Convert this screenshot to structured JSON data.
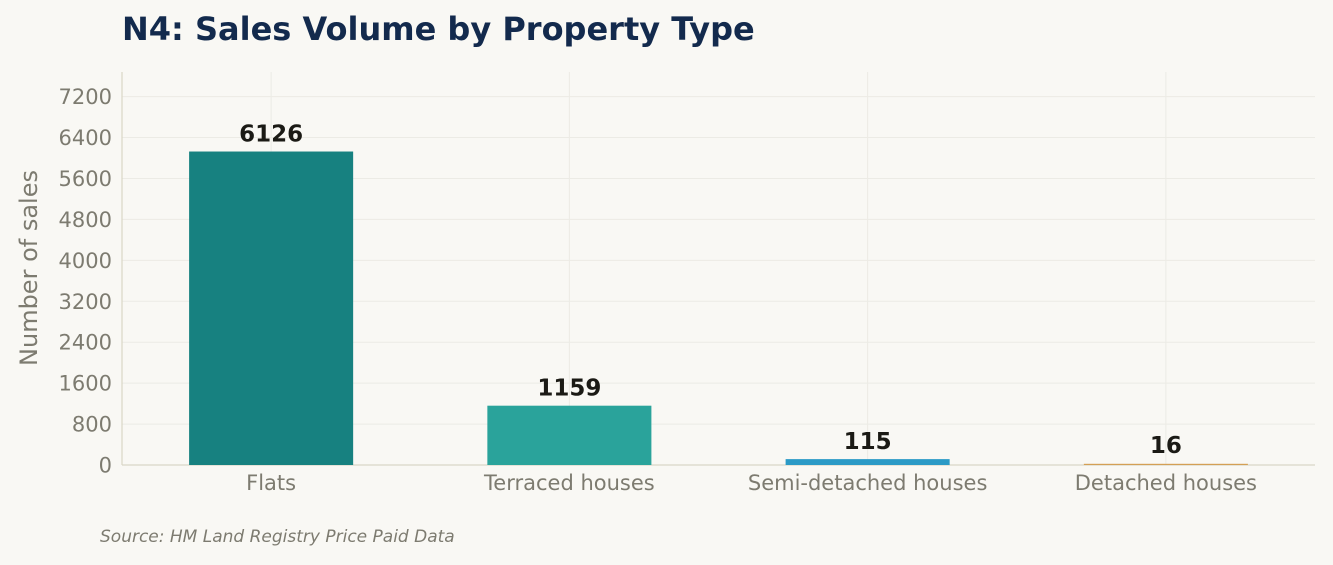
{
  "header": {
    "title": "N4: Sales Volume by Property Type"
  },
  "footer": {
    "source": "Source: HM Land Registry Price Paid Data"
  },
  "colors": {
    "background": "#f9f8f4",
    "title": "#132a4d",
    "grid": "#ecebe5",
    "axis": "#d9d6c6",
    "muted_text": "#7d7b70",
    "data_label": "#1b1a15"
  },
  "chart_data": {
    "type": "bar",
    "title": "N4: Sales Volume by Property Type",
    "xlabel": "",
    "ylabel": "Number of sales",
    "categories": [
      "Flats",
      "Terraced houses",
      "Semi-detached houses",
      "Detached houses"
    ],
    "values": [
      6126,
      1159,
      115,
      16
    ],
    "data_labels": [
      "6126",
      "1159",
      "115",
      "16"
    ],
    "bar_colors": [
      "#178180",
      "#2aa39b",
      "#2b9ac6",
      "#d4a055"
    ],
    "ylim": [
      0,
      7680
    ],
    "yticks": [
      0,
      800,
      1600,
      2400,
      3200,
      4000,
      4800,
      5600,
      6400,
      7200
    ],
    "grid": true,
    "legend": "none"
  }
}
